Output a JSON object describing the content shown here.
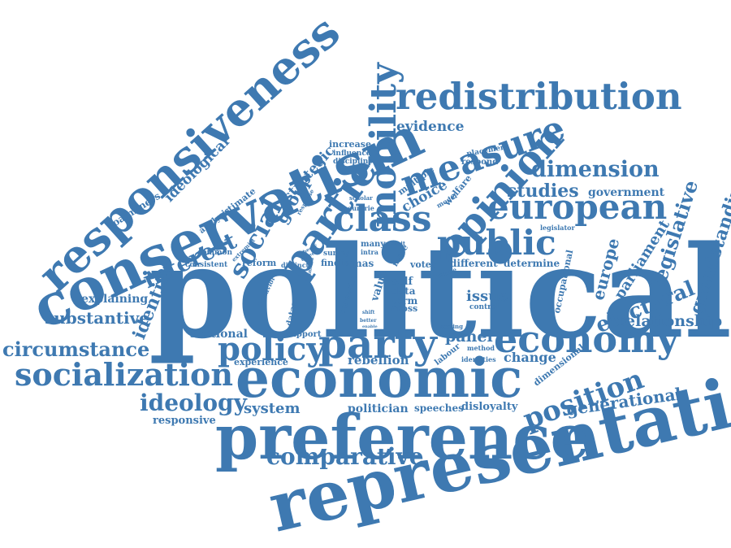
{
  "color": "#3e79b1",
  "words": {
    "political": "political",
    "representation": "representation",
    "preference": "preference",
    "economic": "economic",
    "conservatism": "conservatism",
    "responsiveness": "responsiveness",
    "redistribution": "redistribution",
    "mobility": "mobility",
    "measure": "measure",
    "opinion": "opinion",
    "european": "european",
    "class": "class",
    "public": "public",
    "parties": "partie",
    "party": "party",
    "economy": "economy",
    "policy": "policy",
    "social": "social",
    "socialization": "socialization",
    "circumstance": "circumstance",
    "ideology": "ideology",
    "position": "position",
    "comparative": "comparative",
    "dimension": "dimension",
    "studies": "studies",
    "government": "government",
    "legislative": "legislative",
    "grandstanding": "grandstanding",
    "electoral": "electoral",
    "europe": "europe",
    "parliament": "parliament",
    "relationship": "relationship",
    "generational": "generational",
    "interest": "interest",
    "identity": "identity",
    "substantive": "substantive",
    "explaining": "explaining",
    "sectional": "sectional",
    "system": "system",
    "politician": "politician",
    "responsive": "responsive",
    "group": "group",
    "strategic": "strategic",
    "ideological": "ideological",
    "coalminers": "coalminers",
    "evidence": "evidence",
    "choice": "choice",
    "panel": "panel",
    "change": "change",
    "rebellion": "rebellion",
    "issue": "issue",
    "speeches": "speeches",
    "disloyalty": "disloyalty",
    "determine": "determine",
    "different": "different",
    "voter": "voter",
    "occupational": "occupational",
    "dimensional": "dimensional",
    "experience": "experience",
    "support": "support",
    "estimate": "estimate",
    "analysis": "analysis",
    "reform": "reform",
    "common": "common",
    "consistent": "consistent",
    "increase": "increase",
    "influence": "influence",
    "discipline": "discipline",
    "placement": "placement",
    "respond": "respond",
    "multiple": "multiple",
    "welfare": "welfare",
    "legislator": "legislator",
    "many": "many",
    "mass": "mas",
    "finding": "finding",
    "survey": "survey",
    "self": "self",
    "data": "data",
    "term": "term",
    "cross": "cross",
    "value": "value",
    "careerist": "careerist",
    "dataset": "dataset",
    "control": "control",
    "labour": "labour",
    "identities": "identities",
    "method": "method",
    "scaling": "scaling",
    "more": "more",
    "range": "range",
    "distinct": "distinct",
    "extremist": "extremist",
    "behavior": "behavior",
    "countrie": "countrie",
    "scholar": "scholar",
    "model": "model",
    "intra": "intra",
    "response": "response",
    "exhibit": "exhibit",
    "theory": "theory",
    "career": "career",
    "limited": "limited",
    "shift": "shift",
    "better": "better",
    "enable": "enable",
    "house": "house"
  }
}
